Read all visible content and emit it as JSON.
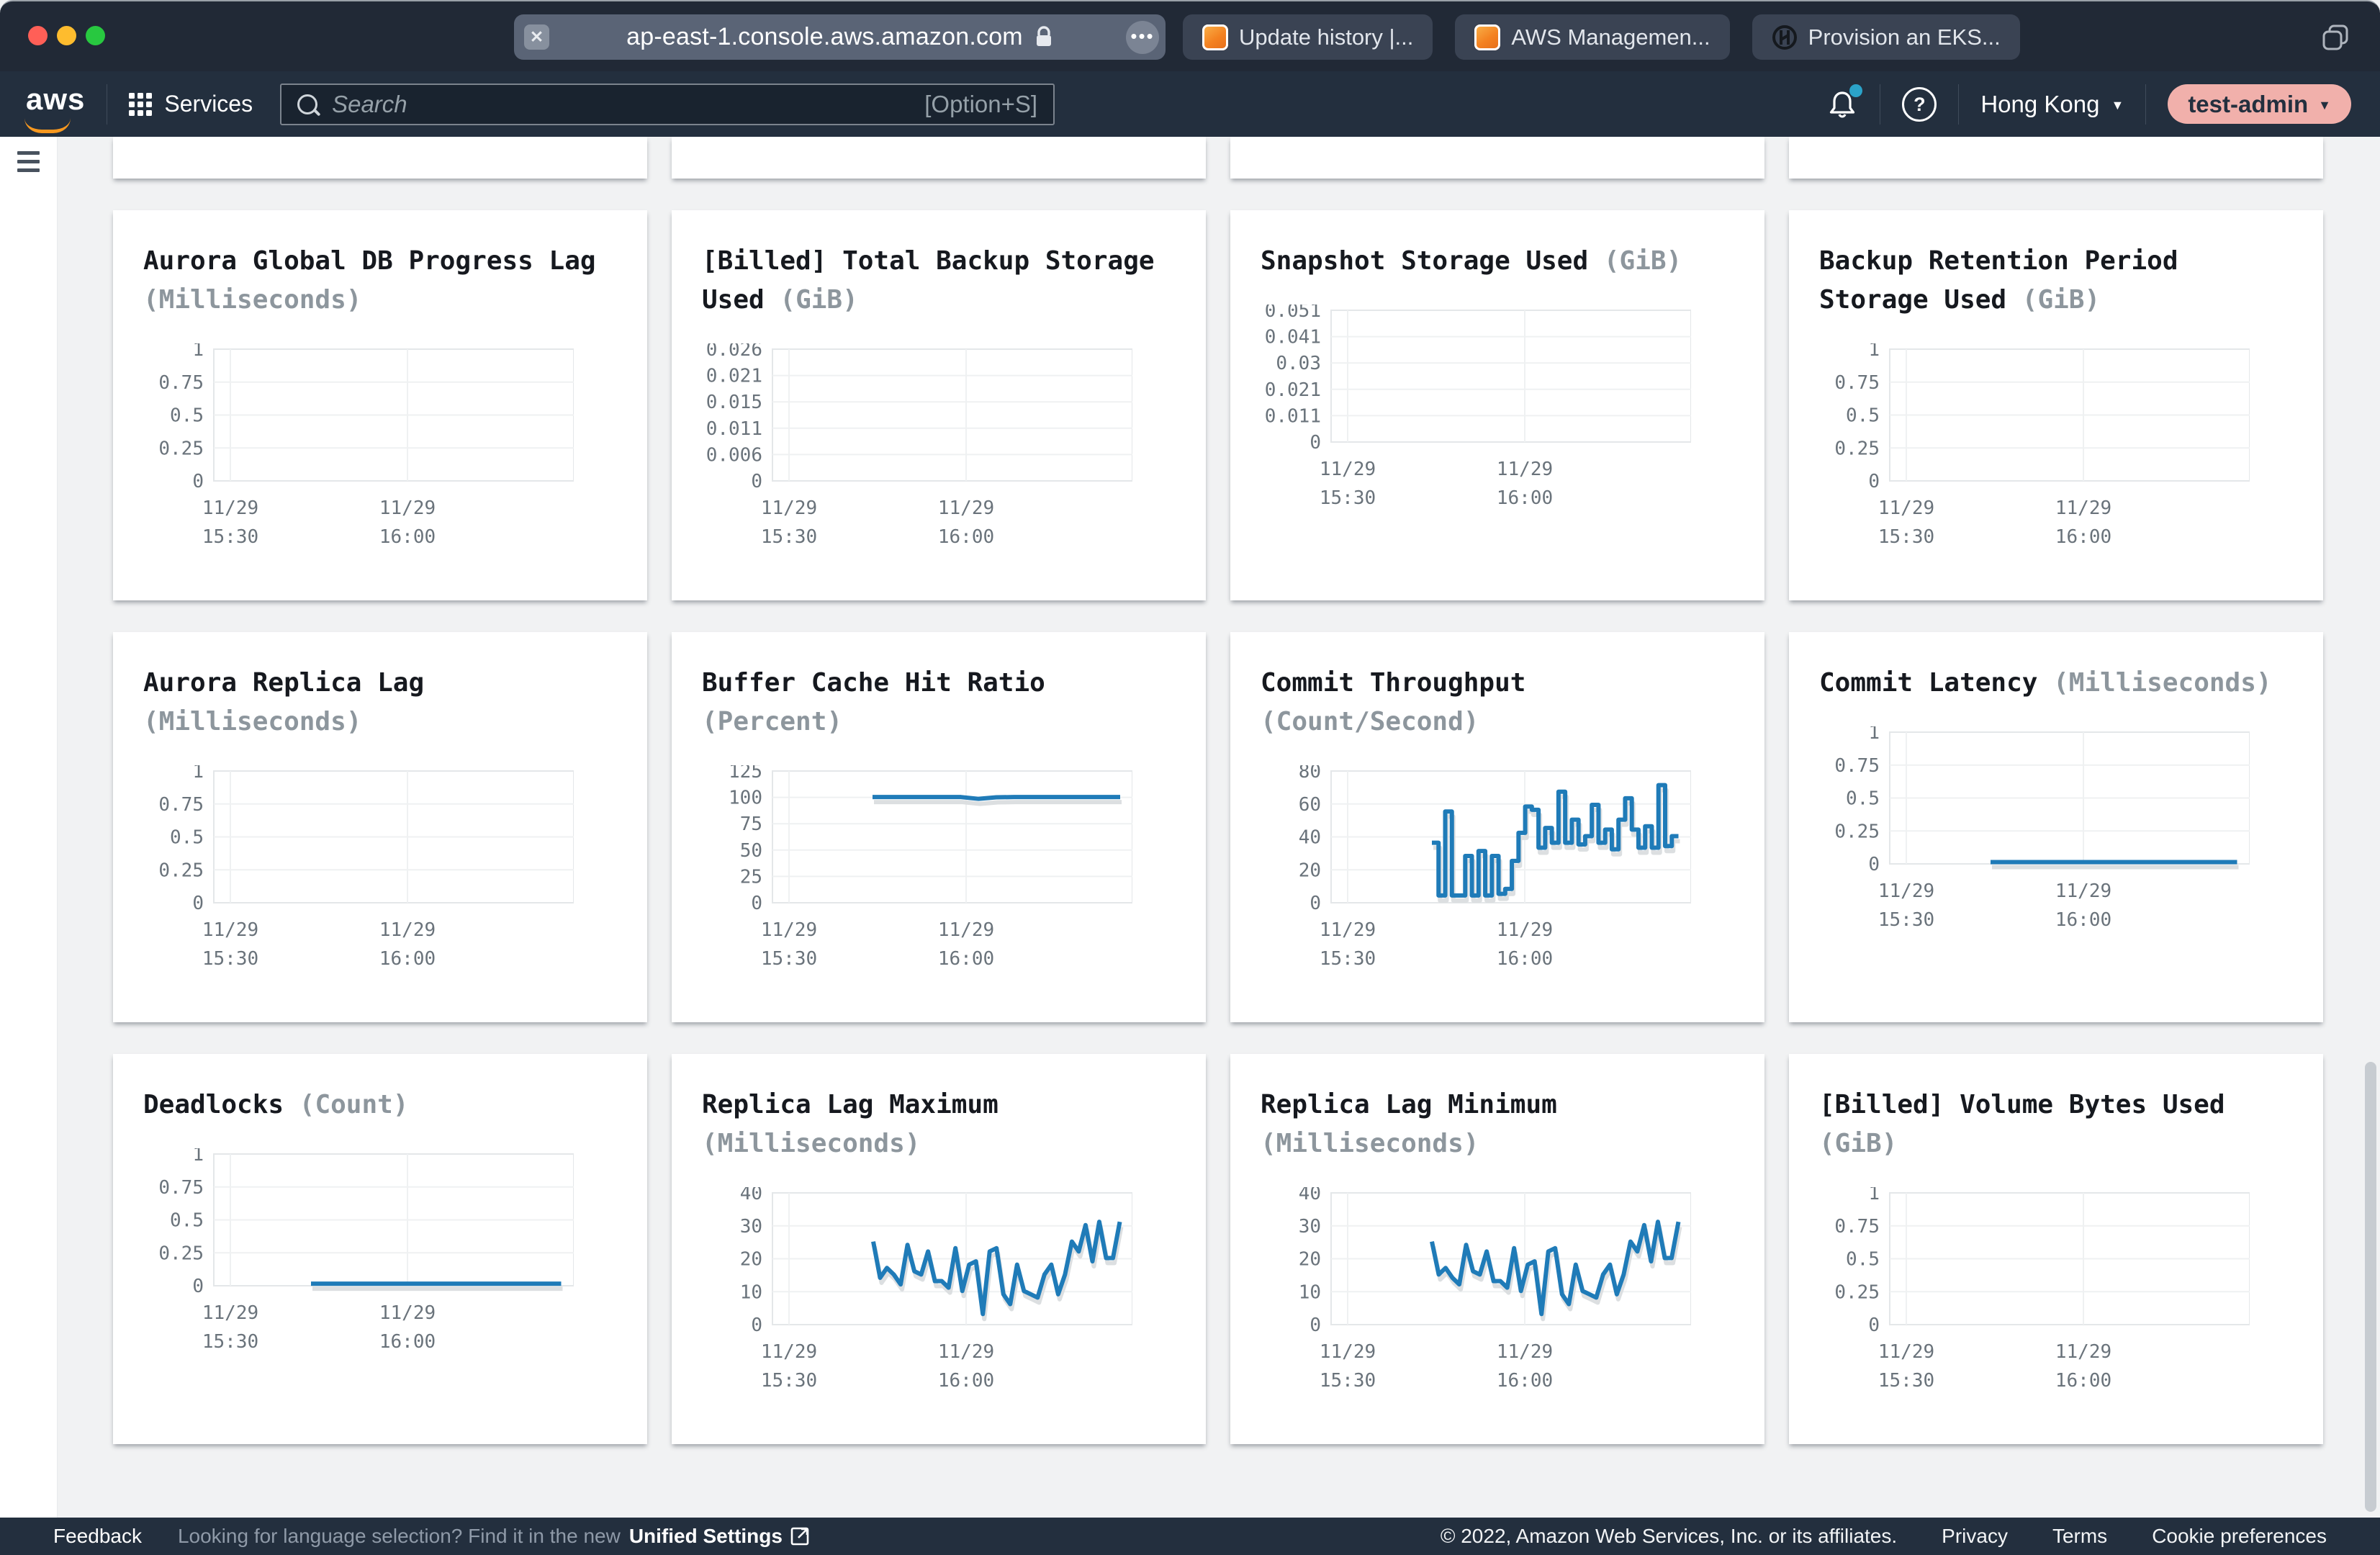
{
  "browser": {
    "url": "ap-east-1.console.aws.amazon.com",
    "tabs": [
      {
        "label": "Update history |...",
        "icon": "aws-favicon"
      },
      {
        "label": "AWS Managemen...",
        "icon": "aws-favicon"
      },
      {
        "label": "Provision an EKS...",
        "icon": "hashicorp-favicon"
      }
    ]
  },
  "nav": {
    "services_label": "Services",
    "search_placeholder": "Search",
    "search_shortcut": "[Option+S]",
    "region": "Hong Kong",
    "account": "test-admin"
  },
  "footer": {
    "feedback": "Feedback",
    "language_prompt": "Looking for language selection? Find it in the new",
    "language_link": "Unified Settings",
    "copyright": "© 2022, Amazon Web Services, Inc. or its affiliates.",
    "privacy": "Privacy",
    "terms": "Terms",
    "cookie": "Cookie preferences"
  },
  "chart_meta": {
    "line_color": "#1f7bb8",
    "shadow_color": "#d8dbde",
    "grid_color": "#eff1f2",
    "border_color": "#e4e7e9",
    "tick_color": "#6a737b",
    "x_ticks": [
      {
        "pos": 0.046,
        "lines": [
          "11/29",
          "15:30"
        ]
      },
      {
        "pos": 0.538,
        "lines": [
          "11/29",
          "16:00"
        ]
      }
    ]
  },
  "chart_data": [
    {
      "type": "line",
      "title": "Aurora Global DB Progress Lag",
      "unit": "(Milliseconds)",
      "ylim": [
        0,
        1
      ],
      "y_ticks": [
        "1",
        "0.75",
        "0.5",
        "0.25",
        "0"
      ],
      "series": null
    },
    {
      "type": "line",
      "title": "[Billed] Total Backup Storage Used",
      "unit": "(GiB)",
      "ylim": [
        0,
        0.026
      ],
      "y_ticks": [
        "0.026",
        "0.021",
        "0.015",
        "0.011",
        "0.006",
        "0"
      ],
      "series": null
    },
    {
      "type": "line",
      "title": "Snapshot Storage Used",
      "unit": "(GiB)",
      "ylim": [
        0,
        0.051
      ],
      "y_ticks": [
        "0.051",
        "0.041",
        "0.03",
        "0.021",
        "0.011",
        "0"
      ],
      "series": null
    },
    {
      "type": "line",
      "title": "Backup Retention Period Storage Used",
      "unit": "(GiB)",
      "ylim": [
        0,
        1
      ],
      "y_ticks": [
        "1",
        "0.75",
        "0.5",
        "0.25",
        "0"
      ],
      "series": null
    },
    {
      "type": "line",
      "title": "Aurora Replica Lag",
      "unit": "(Milliseconds)",
      "ylim": [
        0,
        1
      ],
      "y_ticks": [
        "1",
        "0.75",
        "0.5",
        "0.25",
        "0"
      ],
      "series": null
    },
    {
      "type": "line",
      "title": "Buffer Cache Hit Ratio",
      "unit": "(Percent)",
      "ylim": [
        0,
        125
      ],
      "y_ticks": [
        "125",
        "100",
        "75",
        "50",
        "25",
        "0"
      ],
      "series": {
        "interp": "line",
        "start": 0.278,
        "end": 0.966,
        "values": [
          99.6,
          99.6,
          99.6,
          99.6,
          99.6,
          99.6,
          97.9,
          99.4,
          99.6,
          99.6,
          99.6,
          99.6,
          99.6,
          99.6,
          99.6
        ]
      }
    },
    {
      "type": "line",
      "title": "Commit Throughput",
      "unit": "(Count/Second)",
      "ylim": [
        0,
        80
      ],
      "y_ticks": [
        "80",
        "60",
        "40",
        "20",
        "0"
      ],
      "series": {
        "interp": "step",
        "start": 0.28,
        "end": 0.965,
        "values": [
          36,
          4,
          55,
          4,
          4,
          28,
          4,
          31,
          4,
          28,
          5,
          8,
          25,
          42,
          58,
          56,
          33,
          45,
          36,
          67,
          36,
          50,
          35,
          40,
          59,
          36,
          44,
          32,
          50,
          63,
          44,
          33,
          46,
          33,
          71,
          34,
          40
        ]
      }
    },
    {
      "type": "line",
      "title": "Commit Latency",
      "unit": "(Milliseconds)",
      "ylim": [
        0,
        1
      ],
      "y_ticks": [
        "1",
        "0.75",
        "0.5",
        "0.25",
        "0"
      ],
      "series": {
        "interp": "line",
        "start": 0.28,
        "end": 0.965,
        "values": [
          0.008,
          0.008
        ]
      }
    },
    {
      "type": "line",
      "title": "Deadlocks",
      "unit": "(Count)",
      "ylim": [
        0,
        1
      ],
      "y_ticks": [
        "1",
        "0.75",
        "0.5",
        "0.25",
        "0"
      ],
      "series": {
        "interp": "line",
        "start": 0.27,
        "end": 0.965,
        "values": [
          0.01,
          0.01
        ]
      }
    },
    {
      "type": "line",
      "title": "Replica Lag Maximum",
      "unit": "(Milliseconds)",
      "ylim": [
        0,
        40
      ],
      "y_ticks": [
        "40",
        "30",
        "20",
        "10",
        "0"
      ],
      "series": {
        "interp": "line",
        "start": 0.28,
        "end": 0.965,
        "values": [
          25,
          14,
          17,
          15,
          12,
          24,
          16,
          15,
          22,
          13,
          13,
          11,
          23,
          10,
          18,
          19,
          3,
          22,
          23,
          9,
          6,
          18,
          10,
          9,
          8,
          15,
          18,
          9,
          15,
          25,
          22,
          30,
          19,
          31,
          20,
          20,
          31
        ]
      }
    },
    {
      "type": "line",
      "title": "Replica Lag Minimum",
      "unit": "(Milliseconds)",
      "ylim": [
        0,
        40
      ],
      "y_ticks": [
        "40",
        "30",
        "20",
        "10",
        "0"
      ],
      "series": {
        "interp": "line",
        "start": 0.28,
        "end": 0.965,
        "values": [
          25,
          15,
          17,
          14,
          12,
          24,
          16,
          15,
          22,
          13,
          13,
          11,
          23,
          10,
          18,
          19,
          3,
          22,
          23,
          9,
          6,
          18,
          10,
          9,
          8,
          15,
          18,
          9,
          15,
          25,
          22,
          30,
          19,
          31,
          20,
          20,
          31
        ]
      }
    },
    {
      "type": "line",
      "title": "[Billed] Volume Bytes Used",
      "unit": "(GiB)",
      "ylim": [
        0,
        1
      ],
      "y_ticks": [
        "1",
        "0.75",
        "0.5",
        "0.25",
        "0"
      ],
      "series": null
    }
  ]
}
